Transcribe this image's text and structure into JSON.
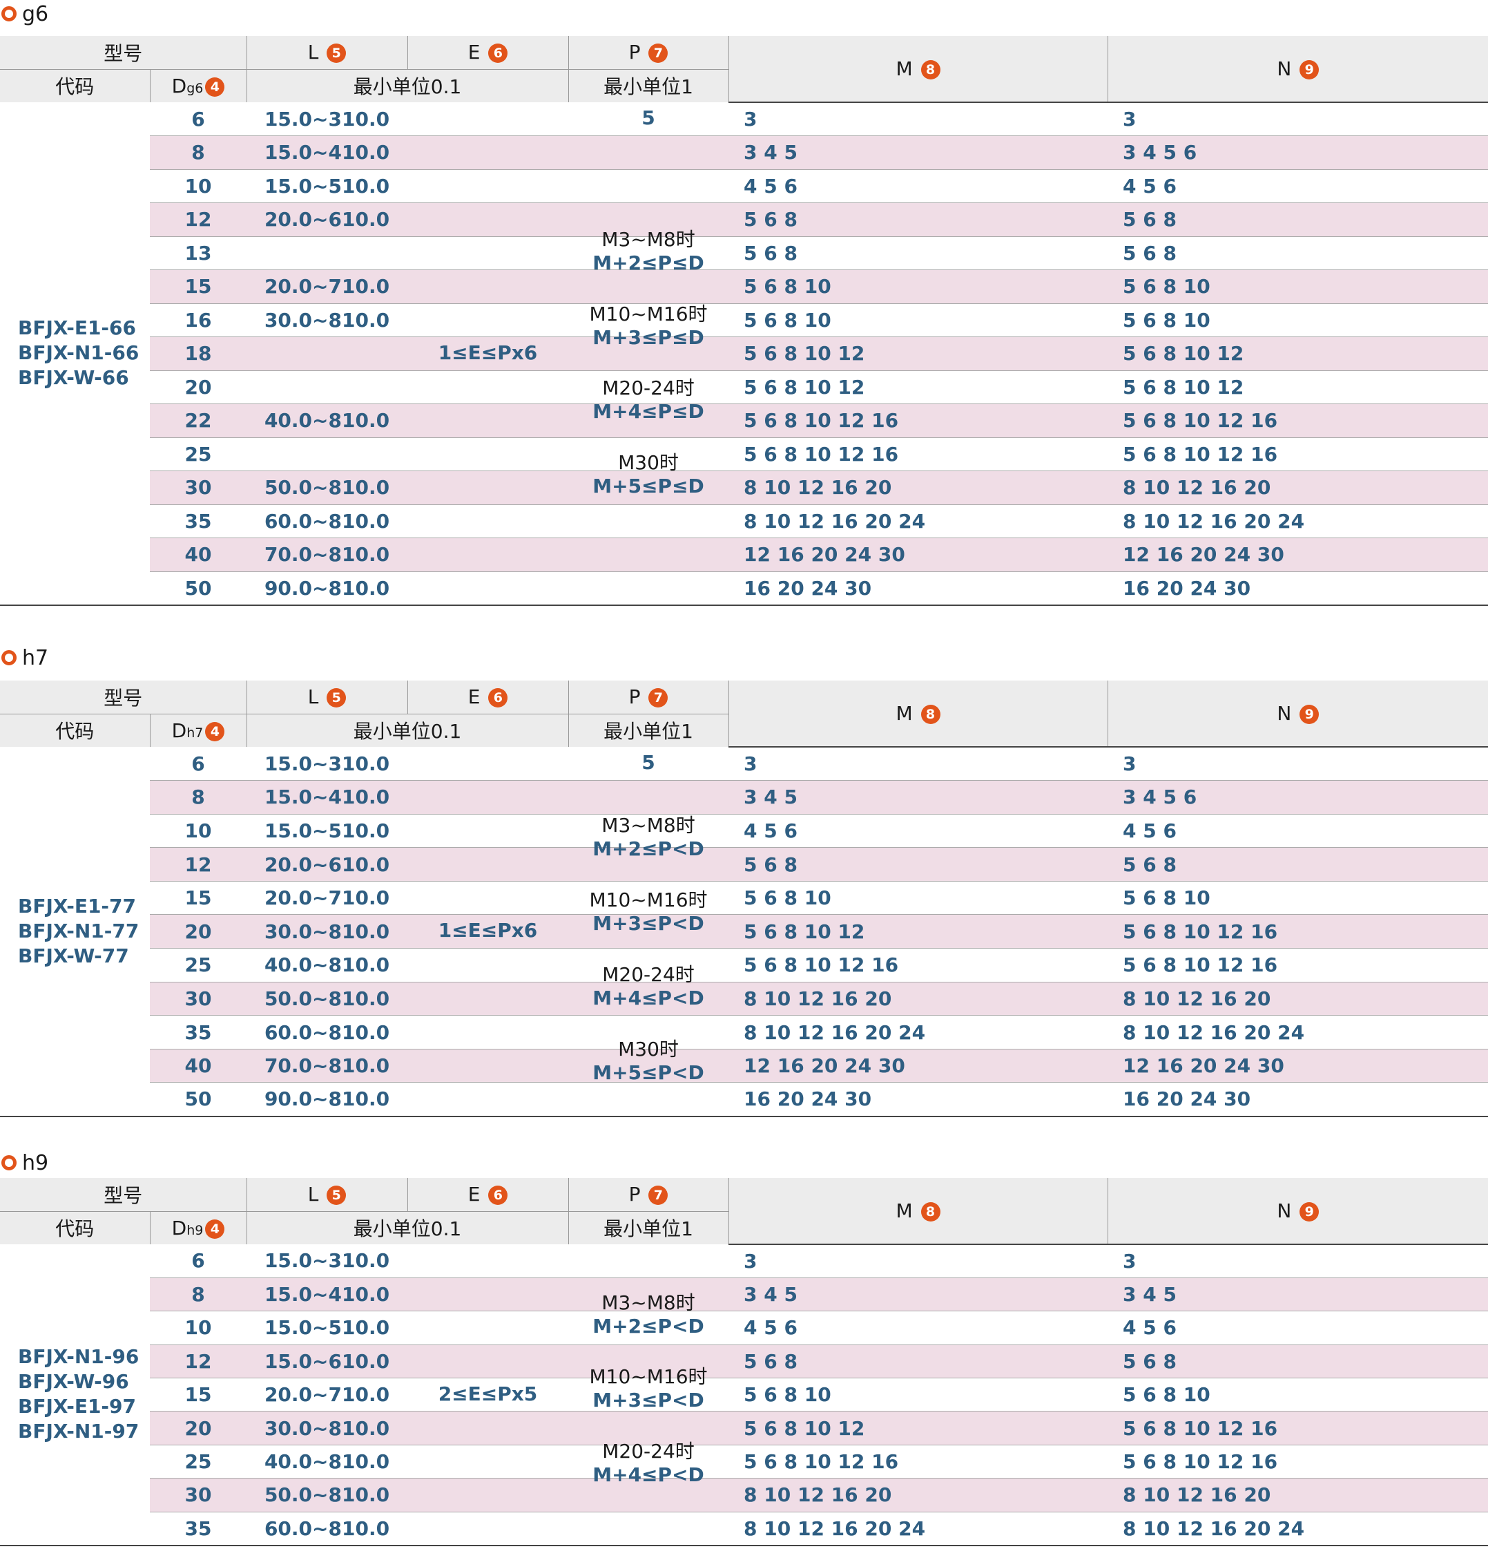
{
  "sections": [
    {
      "title": "g6",
      "dsub": "g6",
      "codes": [
        "BFJX-E1-66",
        "BFJX-N1-66",
        "BFJX-W-66"
      ],
      "e_rule": "1≤E≤Px6",
      "p_first": "5",
      "p_rules": [
        {
          "cond": "M3~M8时",
          "rule": "M+2≤P≤D"
        },
        {
          "cond": "M10~M16时",
          "rule": "M+3≤P≤D"
        },
        {
          "cond": "M20-24时",
          "rule": "M+4≤P≤D"
        },
        {
          "cond": "M30时",
          "rule": "M+5≤P≤D"
        }
      ],
      "rows": [
        {
          "d": "6",
          "l": "15.0~310.0",
          "m": "3",
          "n": "3"
        },
        {
          "d": "8",
          "l": "15.0~410.0",
          "m": "3  4  5",
          "n": "3  4  5  6"
        },
        {
          "d": "10",
          "l": "15.0~510.0",
          "m": "    4  5  6",
          "n": "    4  5  6"
        },
        {
          "d": "12",
          "l": "20.0~610.0",
          "m": "         5  6  8",
          "n": "         5  6  8"
        },
        {
          "d": "13",
          "l": "",
          "m": "         5  6  8",
          "n": "         5  6  8"
        },
        {
          "d": "15",
          "l": "20.0~710.0",
          "m": "         5  6  8  10",
          "n": "         5  6  8  10"
        },
        {
          "d": "16",
          "l": "30.0~810.0",
          "m": "         5  6  8  10",
          "n": "         5  6  8  10"
        },
        {
          "d": "18",
          "l": "",
          "m": "         5  6  8  10  12",
          "n": "         5  6  8  10  12"
        },
        {
          "d": "20",
          "l": "",
          "m": "         5  6  8  10  12",
          "n": "         5  6  8  10  12"
        },
        {
          "d": "22",
          "l": "40.0~810.0",
          "m": "         5  6  8  10  12  16",
          "n": "         5  6  8  10  12  16"
        },
        {
          "d": "25",
          "l": "",
          "m": "         5  6  8  10  12  16",
          "n": "         5  6  8  10  12  16"
        },
        {
          "d": "30",
          "l": "50.0~810.0",
          "m": "                8  10  12  16  20",
          "n": "                8  10  12  16  20"
        },
        {
          "d": "35",
          "l": "60.0~810.0",
          "m": "                8  10  12  16  20  24",
          "n": "                8  10  12  16  20  24"
        },
        {
          "d": "40",
          "l": "70.0~810.0",
          "m": "                          12  16  20  24  30",
          "n": "                          12  16  20  24  30"
        },
        {
          "d": "50",
          "l": "90.0~810.0",
          "m": "                                16  20  24  30",
          "n": "                                16  20  24  30"
        }
      ]
    },
    {
      "title": "h7",
      "dsub": "h7",
      "codes": [
        "BFJX-E1-77",
        "BFJX-N1-77",
        "BFJX-W-77"
      ],
      "e_rule": "1≤E≤Px6",
      "p_first": "5",
      "p_rules": [
        {
          "cond": "M3~M8时",
          "rule": "M+2≤P<D"
        },
        {
          "cond": "M10~M16时",
          "rule": "M+3≤P<D"
        },
        {
          "cond": "M20-24时",
          "rule": "M+4≤P<D"
        },
        {
          "cond": "M30时",
          "rule": "M+5≤P<D"
        }
      ],
      "rows": [
        {
          "d": "6",
          "l": "15.0~310.0",
          "m": "3",
          "n": "3"
        },
        {
          "d": "8",
          "l": "15.0~410.0",
          "m": "3   4   5",
          "n": "3   4   5   6"
        },
        {
          "d": "10",
          "l": "15.0~510.0",
          "m": "     4   5   6",
          "n": "     4   5   6"
        },
        {
          "d": "12",
          "l": "20.0~610.0",
          "m": "          5   6   8",
          "n": "          5   6   8"
        },
        {
          "d": "15",
          "l": "20.0~710.0",
          "m": "          5   6   8  10",
          "n": "          5   6   8  10"
        },
        {
          "d": "20",
          "l": "30.0~810.0",
          "m": "          5   6   8  10 12",
          "n": "          5   6   8  10 12 16"
        },
        {
          "d": "25",
          "l": "40.0~810.0",
          "m": "          5   6   8  10 12 16",
          "n": "          5   6   8  10 12 16"
        },
        {
          "d": "30",
          "l": "50.0~810.0",
          "m": "                  8  10 12 16 20",
          "n": "                  8  10 12 16 20"
        },
        {
          "d": "35",
          "l": "60.0~810.0",
          "m": "                  8  10 12 16 20 24",
          "n": "                  8  10 12 16 20 24"
        },
        {
          "d": "40",
          "l": "70.0~810.0",
          "m": "                          12 16 20 24 30",
          "n": "                          12 16 20 24 30"
        },
        {
          "d": "50",
          "l": "90.0~810.0",
          "m": "                             16 20 24 30",
          "n": "                             16 20 24 30"
        }
      ]
    },
    {
      "title": "h9",
      "dsub": "h9",
      "codes": [
        "BFJX-N1-96",
        "BFJX-W-96",
        "BFJX-E1-97",
        "BFJX-N1-97"
      ],
      "e_rule": "2≤E≤Px5",
      "p_first": "",
      "p_rules": [
        {
          "cond": "M3~M8时",
          "rule": "M+2≤P<D"
        },
        {
          "cond": "M10~M16时",
          "rule": "M+3≤P<D"
        },
        {
          "cond": "M20-24时",
          "rule": "M+4≤P<D"
        }
      ],
      "rows": [
        {
          "d": "6",
          "l": "15.0~310.0",
          "m": "3",
          "n": "3"
        },
        {
          "d": "8",
          "l": "15.0~410.0",
          "m": "3    4    5",
          "n": "3    4    5"
        },
        {
          "d": "10",
          "l": "15.0~510.0",
          "m": "     4    5    6",
          "n": "     4    5    6"
        },
        {
          "d": "12",
          "l": "15.0~610.0",
          "m": "          5    6    8",
          "n": "          5    6    8"
        },
        {
          "d": "15",
          "l": "20.0~710.0",
          "m": "          5    6    8   10",
          "n": "          5    6    8   10"
        },
        {
          "d": "20",
          "l": "30.0~810.0",
          "m": "          5    6    8   10  12",
          "n": "          5    6    8   10  12  16"
        },
        {
          "d": "25",
          "l": "40.0~810.0",
          "m": "          5    6    8   10  12  16",
          "n": "          5    6    8   10  12  16"
        },
        {
          "d": "30",
          "l": "50.0~810.0",
          "m": "                    8   10  12  16  20",
          "n": "                    8   10  12  16  20"
        },
        {
          "d": "35",
          "l": "60.0~810.0",
          "m": "                    8   10  12  16  20  24",
          "n": "                    8   10  12  16  20  24"
        }
      ]
    }
  ],
  "headers": {
    "model": "型号",
    "code": "代码",
    "d": "D",
    "d_badge": "4",
    "l": "L",
    "l_badge": "5",
    "e": "E",
    "e_badge": "6",
    "p": "P",
    "p_badge": "7",
    "m": "M",
    "m_badge": "8",
    "n": "N",
    "n_badge": "9",
    "unit01": "最小单位0.1",
    "unit1": "最小单位1"
  },
  "colors": {
    "accent": "#e2541a",
    "value_blue": "#2f5e82",
    "row_pink": "#f0dde6",
    "header_gray": "#ececec"
  }
}
